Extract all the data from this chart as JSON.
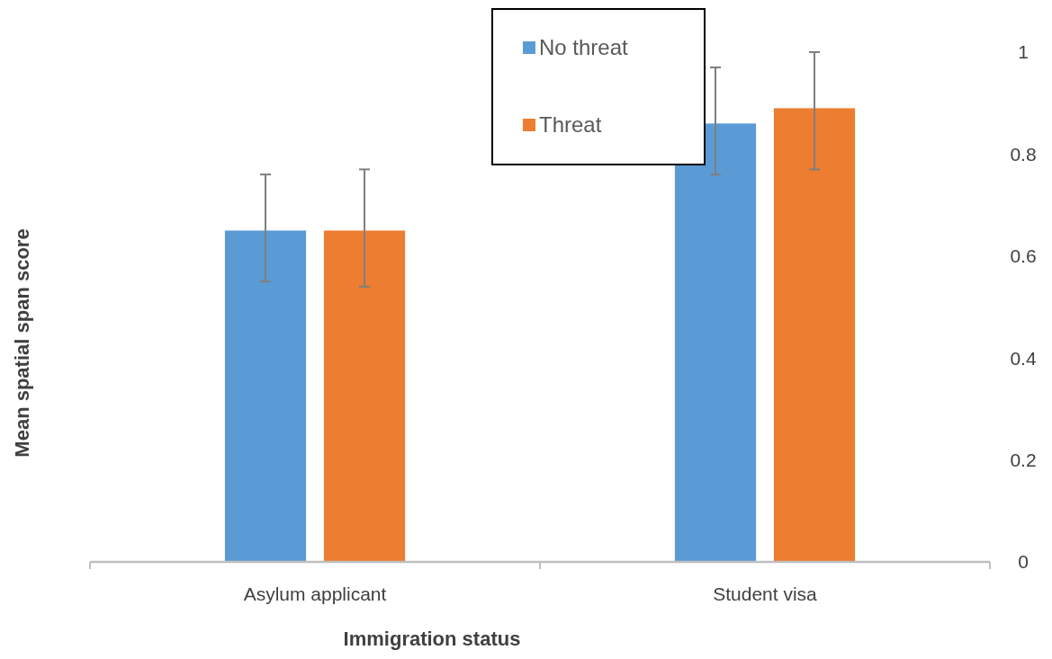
{
  "chart_data": {
    "type": "bar",
    "xlabel": "Immigration status",
    "ylabel": "Mean spatial span score",
    "categories": [
      "Asylum applicant",
      "Student visa"
    ],
    "series": [
      {
        "name": "No threat",
        "color": "#5b9bd5",
        "values": [
          0.65,
          0.86
        ],
        "errors": [
          [
            0.55,
            0.76
          ],
          [
            0.76,
            0.97
          ]
        ]
      },
      {
        "name": "Threat",
        "color": "#ed7d31",
        "values": [
          0.65,
          0.89
        ],
        "errors": [
          [
            0.54,
            0.77
          ],
          [
            0.77,
            1.0
          ]
        ]
      }
    ],
    "ylim": [
      0,
      1
    ],
    "yticks": [
      0,
      {
        "value": 0.2,
        "label": "0.2"
      },
      {
        "value": 0.4,
        "label": "0.4"
      },
      {
        "value": 0.6,
        "label": "0.6"
      },
      {
        "value": 0.8,
        "label": "0.8"
      },
      1
    ],
    "legend": "top"
  }
}
